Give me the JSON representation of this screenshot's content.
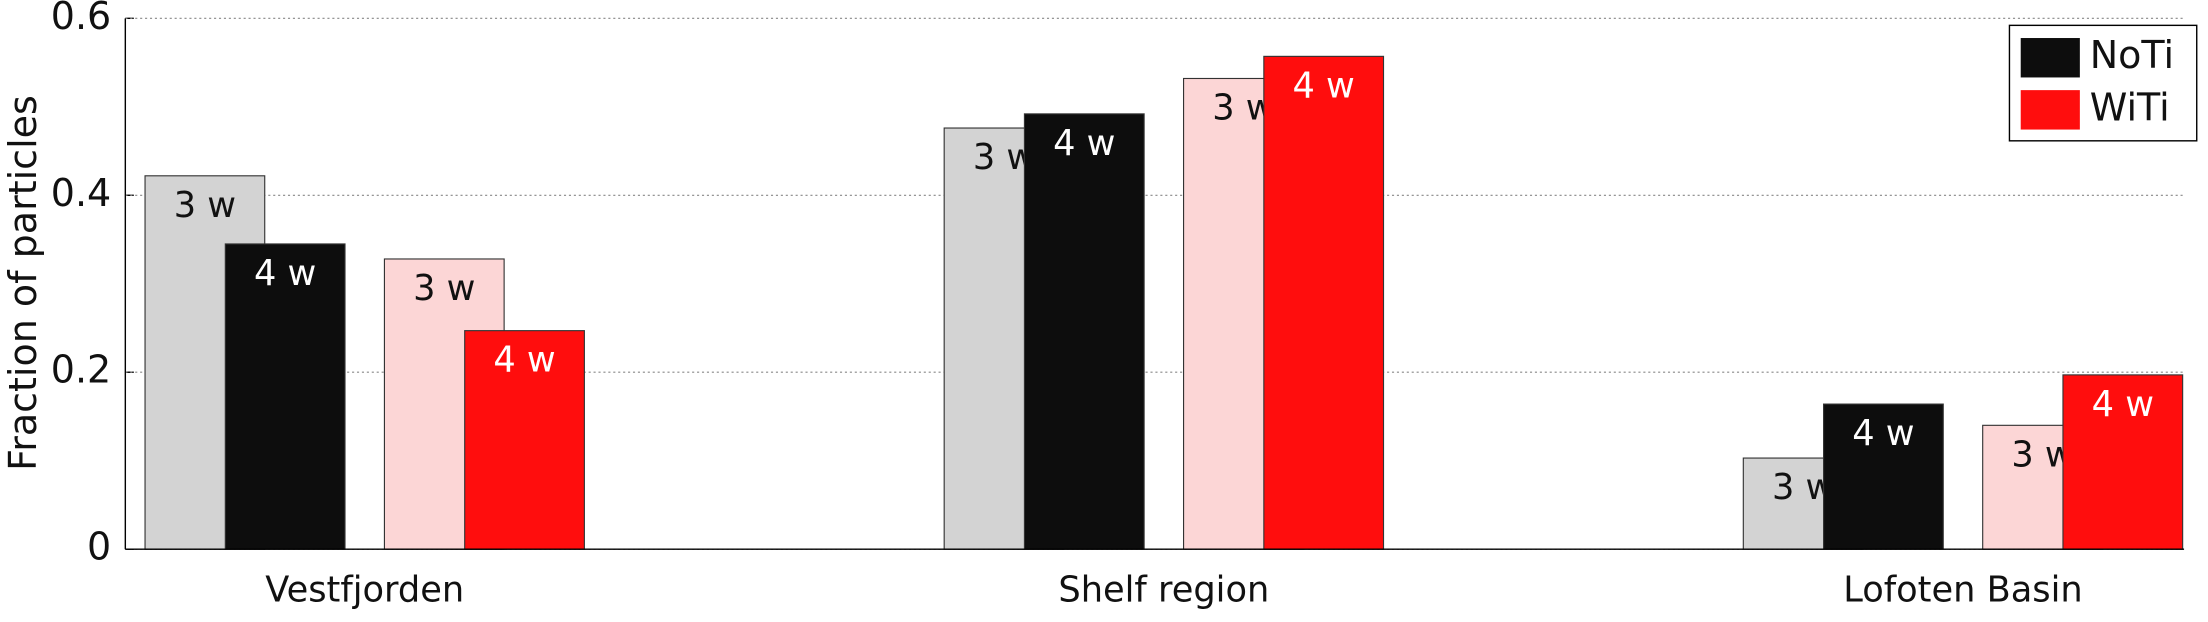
{
  "chart_data": {
    "type": "bar",
    "ylabel": "Fraction of particles",
    "categories": [
      "Vestfjorden",
      "Shelf region",
      "Lofoten Basin"
    ],
    "series": [
      {
        "label": "3 w",
        "color": "#d3d3d3",
        "text_color": "#111111",
        "values": [
          0.422,
          0.476,
          0.103
        ]
      },
      {
        "label": "4 w",
        "color": "#0d0d0d",
        "text_color": "#ffffff",
        "values": [
          0.345,
          0.492,
          0.164
        ]
      },
      {
        "label": "3 w",
        "color": "#fcd6d6",
        "text_color": "#111111",
        "values": [
          0.328,
          0.532,
          0.14
        ]
      },
      {
        "label": "4 w",
        "color": "#ff0d0d",
        "text_color": "#ffffff",
        "values": [
          0.247,
          0.557,
          0.197
        ]
      }
    ],
    "legend": [
      {
        "name": "NoTi",
        "color": "#0d0d0d"
      },
      {
        "name": "WiTi",
        "color": "#ff0d0d"
      }
    ],
    "legend_position": "upper right",
    "ylim": [
      0,
      0.6
    ],
    "yticks": [
      0,
      0.2,
      0.4,
      0.6
    ],
    "grid": true
  }
}
